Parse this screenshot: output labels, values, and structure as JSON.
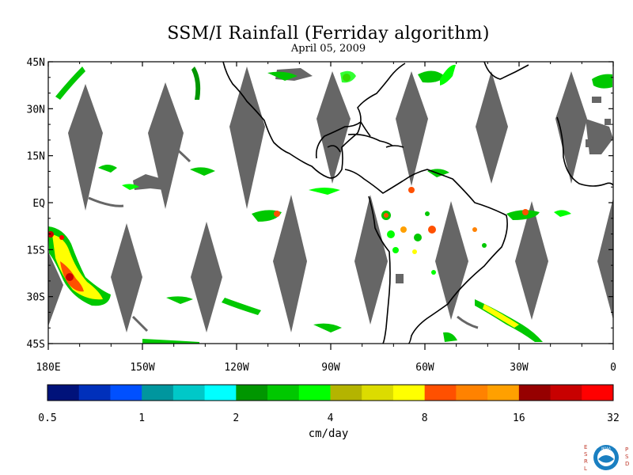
{
  "header": {
    "title": "SSM/I Rainfall (Ferriday algorithm)",
    "date": "April 05, 2009"
  },
  "map": {
    "lat_labels": [
      "45N",
      "30N",
      "15N",
      "EQ",
      "15S",
      "30S",
      "45S"
    ],
    "lon_labels": [
      "180E",
      "150W",
      "120W",
      "90W",
      "60W",
      "30W",
      "0"
    ],
    "lat_values": [
      45,
      30,
      15,
      0,
      -15,
      -30,
      -45
    ],
    "lon_values": [
      -180,
      -150,
      -120,
      -90,
      -60,
      -30,
      0
    ],
    "extent": {
      "lon": [
        -180,
        0
      ],
      "lat": [
        -45,
        45
      ]
    },
    "no_data_color": "#666666",
    "land_color": "#ffffff",
    "coastline_color": "#000000"
  },
  "colorbar": {
    "colors": [
      "#00127a",
      "#0030bb",
      "#0050ff",
      "#00969e",
      "#00c8c8",
      "#00ffff",
      "#009600",
      "#00c800",
      "#00ff00",
      "#b4b400",
      "#dcdc00",
      "#ffff00",
      "#ff5000",
      "#ff8200",
      "#ffa000",
      "#960000",
      "#c80000",
      "#ff0000"
    ],
    "tick_labels": [
      "0.5",
      "1",
      "2",
      "4",
      "8",
      "16",
      "32"
    ],
    "units": "cm/day"
  },
  "logo": {
    "left_letters": [
      "E",
      "S",
      "R",
      "L"
    ],
    "right_letters": [
      "P",
      "S",
      "D"
    ],
    "emblem_text": "NOAA",
    "ring_color": "#1a7fc1"
  }
}
